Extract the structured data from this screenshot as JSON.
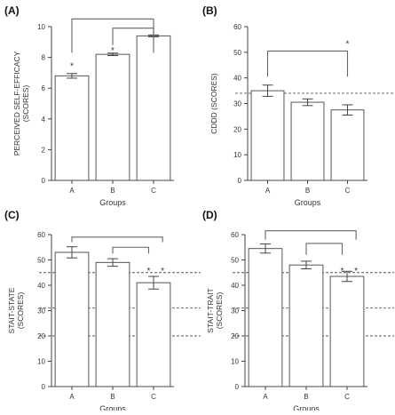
{
  "chart_data": [
    {
      "type": "bar",
      "panel_label": "(A)",
      "categories": [
        "A",
        "B",
        "C"
      ],
      "values": [
        6.8,
        8.2,
        9.4
      ],
      "errors": [
        0.15,
        0.08,
        0.06
      ],
      "ylim": [
        0,
        10
      ],
      "yticks": [
        "0",
        "2",
        "4",
        "6",
        "8",
        "10"
      ],
      "ytick_values": [
        0,
        2,
        4,
        6,
        8,
        10
      ],
      "ylabel_lines": [
        "PERCEIVED SELF-EFFICACY",
        "(SCORES)"
      ],
      "xlabel": "Groups",
      "reference_lines": [],
      "brackets": [
        {
          "from": 0,
          "to": 2,
          "level": 10.5,
          "drop": 8.3
        },
        {
          "from": 1,
          "to": 2,
          "level": 9.9,
          "drop": 8.8
        }
      ],
      "stars": [
        {
          "x": 0,
          "y": 7.5,
          "text": "*"
        },
        {
          "x": 1,
          "y": 8.5,
          "text": "*"
        }
      ]
    },
    {
      "type": "bar",
      "panel_label": "(B)",
      "categories": [
        "A",
        "B",
        "C"
      ],
      "values": [
        35,
        30.5,
        27.5
      ],
      "errors": [
        2.2,
        1.3,
        2.0
      ],
      "ylim": [
        0,
        60
      ],
      "yticks": [
        "0",
        "10",
        "20",
        "30",
        "40",
        "50",
        "60"
      ],
      "ytick_values": [
        0,
        10,
        20,
        30,
        40,
        50,
        60
      ],
      "ylabel_lines": [
        "CDDD (SCORES)"
      ],
      "xlabel": "Groups",
      "reference_lines": [
        34
      ],
      "brackets": [
        {
          "from": 0,
          "to": 2,
          "level": 50.5,
          "drop": 40.5
        }
      ],
      "stars": [
        {
          "x": 2,
          "y": 53.5,
          "text": "*"
        }
      ]
    },
    {
      "type": "bar",
      "panel_label": "(C)",
      "categories": [
        "A",
        "B",
        "C"
      ],
      "values": [
        53,
        49,
        41
      ],
      "errors": [
        2.2,
        1.5,
        2.5
      ],
      "ylim": [
        0,
        60
      ],
      "yticks": [
        "0",
        "10",
        "20",
        "30",
        "40",
        "50",
        "60"
      ],
      "ytick_values": [
        0,
        10,
        20,
        30,
        40,
        50,
        60
      ],
      "ylabel_lines": [
        "STAIT-STATE",
        "(SCORES)"
      ],
      "xlabel": "Groups",
      "reference_lines": [
        20,
        31,
        45
      ],
      "brackets": [
        {
          "from": 0,
          "to": 2.22,
          "level": 59,
          "drop": 57
        },
        {
          "from": 1,
          "to": 1.88,
          "level": 55,
          "drop": 52.5
        }
      ],
      "stars": [
        {
          "x": 1.88,
          "y": 46,
          "text": "*"
        },
        {
          "x": 2.22,
          "y": 46,
          "text": "*"
        }
      ]
    },
    {
      "type": "bar",
      "panel_label": "(D)",
      "categories": [
        "A",
        "B",
        "C"
      ],
      "values": [
        54.5,
        48,
        43.5
      ],
      "errors": [
        1.8,
        1.5,
        2.0
      ],
      "ylim": [
        0,
        60
      ],
      "yticks": [
        "0",
        "10",
        "20",
        "30",
        "40",
        "50",
        "60"
      ],
      "ytick_values": [
        0,
        10,
        20,
        30,
        40,
        50,
        60
      ],
      "ylabel_lines": [
        "STAIT-TRAIT",
        "(SCORES)"
      ],
      "xlabel": "Groups",
      "reference_lines": [
        20,
        31,
        45
      ],
      "brackets": [
        {
          "from": 0,
          "to": 2.22,
          "level": 61.5,
          "drop": 58
        },
        {
          "from": 1,
          "to": 1.88,
          "level": 56.5,
          "drop": 52
        }
      ],
      "stars": [
        {
          "x": 1.88,
          "y": 46,
          "text": "*"
        },
        {
          "x": 2.22,
          "y": 46,
          "text": "*"
        }
      ]
    }
  ]
}
